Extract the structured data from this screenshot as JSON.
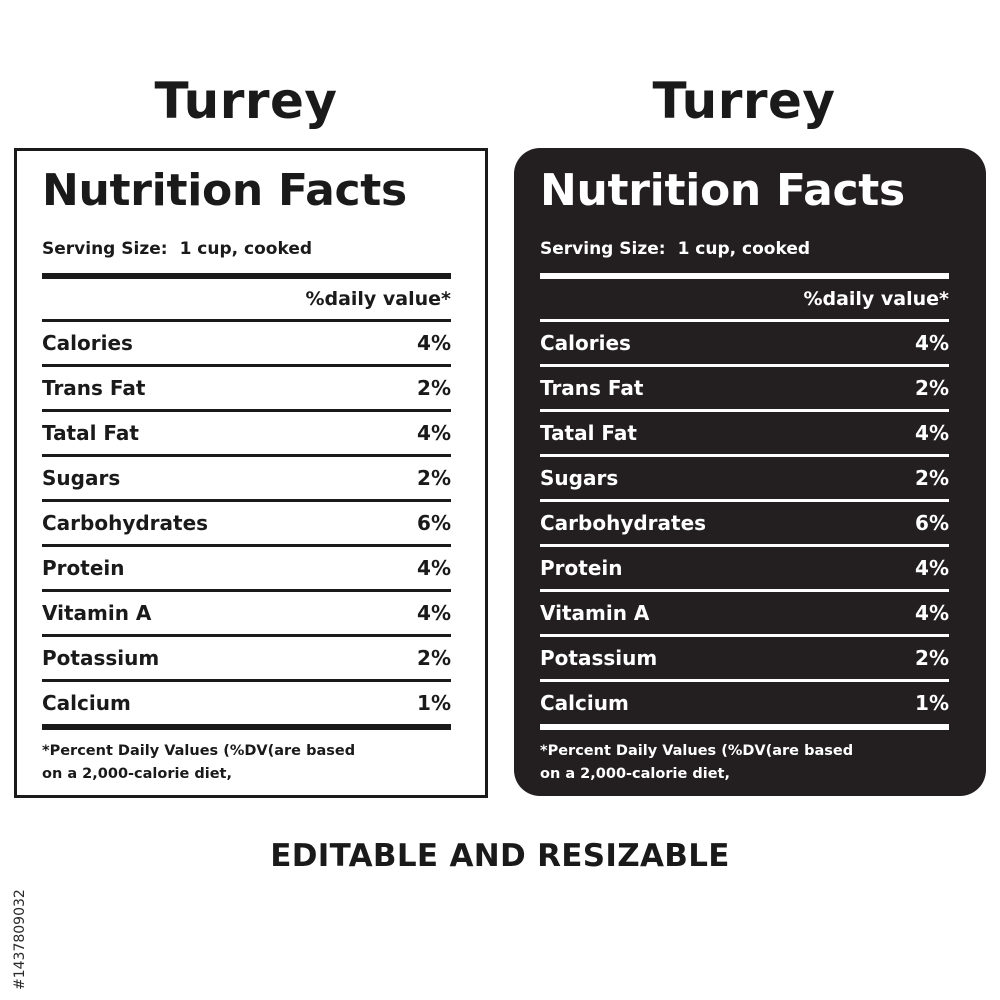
{
  "labels": [
    {
      "product_title": "Turrey",
      "heading": "Nutrition Facts",
      "serving_label": "Serving Size:",
      "serving_value": "1 cup, cooked",
      "dv_header": "%daily value*",
      "nutrients": [
        {
          "name": "Calories",
          "value": "4%"
        },
        {
          "name": "Trans Fat",
          "value": "2%"
        },
        {
          "name": "Tatal Fat",
          "value": "4%"
        },
        {
          "name": "Sugars",
          "value": "2%"
        },
        {
          "name": "Carbohydrates",
          "value": "6%"
        },
        {
          "name": "Protein",
          "value": "4%"
        },
        {
          "name": "Vitamin A",
          "value": "4%"
        },
        {
          "name": "Potassium",
          "value": "2%"
        },
        {
          "name": "Calcium",
          "value": "1%"
        }
      ],
      "footnote_line1": "*Percent Daily Values (%DV(are  based",
      "footnote_line2": "on a 2,000-calorie diet,"
    },
    {
      "product_title": "Turrey",
      "heading": "Nutrition Facts",
      "serving_label": "Serving Size:",
      "serving_value": "1 cup, cooked",
      "dv_header": "%daily value*",
      "nutrients": [
        {
          "name": "Calories",
          "value": "4%"
        },
        {
          "name": "Trans Fat",
          "value": "2%"
        },
        {
          "name": "Tatal Fat",
          "value": "4%"
        },
        {
          "name": "Sugars",
          "value": "2%"
        },
        {
          "name": "Carbohydrates",
          "value": "6%"
        },
        {
          "name": "Protein",
          "value": "4%"
        },
        {
          "name": "Vitamin A",
          "value": "4%"
        },
        {
          "name": "Potassium",
          "value": "2%"
        },
        {
          "name": "Calcium",
          "value": "1%"
        }
      ],
      "footnote_line1": "*Percent Daily Values (%DV(are  based",
      "footnote_line2": "on a 2,000-calorie diet,"
    }
  ],
  "footer_text": "EDITABLE AND RESIZABLE",
  "stock_id": "#1437809032",
  "colors": {
    "ink": "#1a1a1a",
    "dark_panel": "#231f20",
    "background": "#ffffff"
  }
}
